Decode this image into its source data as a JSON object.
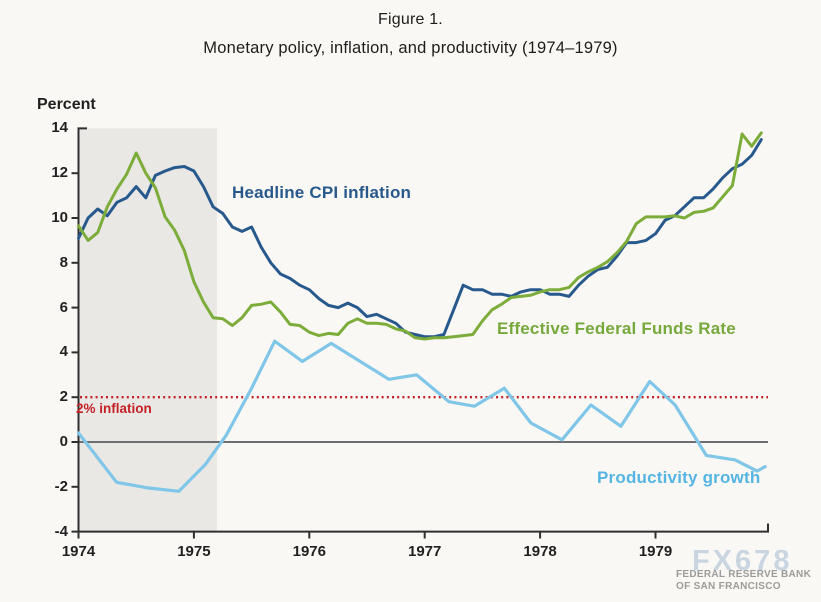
{
  "figure": {
    "label": "Figure 1.",
    "title": "Monetary policy, inflation, and productivity (1974–1979)"
  },
  "axis": {
    "unit_label": "Percent",
    "y_ticks": [
      14,
      12,
      10,
      8,
      6,
      4,
      2,
      0,
      -2,
      -4
    ],
    "x_ticks": [
      1974,
      1975,
      1976,
      1977,
      1978,
      1979
    ]
  },
  "annotations": {
    "cpi_label": "Headline CPI inflation",
    "ffr_label": "Effective Federal Funds Rate",
    "productivity_label": "Productivity growth",
    "target_label": "2% inflation"
  },
  "watermark": {
    "brand": "FX678",
    "org_line1": "FEDERAL RESERVE BANK",
    "org_line2": "OF SAN FRANCISCO"
  },
  "colors": {
    "background": "#faf8f4",
    "band": "#e9e8e5",
    "axis": "#2f2f2f",
    "zero_line": "#6d6e71",
    "target_line": "#c42127",
    "cpi": "#27598d",
    "ffr": "#7cad3a",
    "productivity": "#7fc6e8",
    "cpi_label": "#27598d",
    "ffr_label": "#76a93c",
    "productivity_label": "#54b5e3",
    "watermark_brand": "#becddd",
    "watermark_org": "#9b9b99"
  },
  "chart_data": {
    "type": "line",
    "title": "Monetary policy, inflation, and productivity (1974–1979)",
    "xlabel": "",
    "ylabel": "Percent",
    "ylim": [
      -4,
      14
    ],
    "xlim": [
      1974,
      1979.97
    ],
    "grid": false,
    "legend_position": "inline-annotations",
    "shaded_region": {
      "x_start": 1974.0,
      "x_end": 1975.2
    },
    "reference_lines": [
      {
        "value": 2,
        "label": "2% inflation",
        "style": "dotted",
        "color": "#c42127"
      },
      {
        "value": 0,
        "label": "",
        "style": "solid",
        "color": "#6d6e71"
      }
    ],
    "series": [
      {
        "name": "Headline CPI inflation",
        "color": "#27598d",
        "x_start": 1974.0,
        "x_step_months": 1,
        "values": [
          9.1,
          10.0,
          10.4,
          10.1,
          10.7,
          10.9,
          11.4,
          10.9,
          11.9,
          12.1,
          12.25,
          12.3,
          12.1,
          11.4,
          10.5,
          10.2,
          9.6,
          9.4,
          9.6,
          8.7,
          8.0,
          7.5,
          7.3,
          7.0,
          6.8,
          6.4,
          6.1,
          6.0,
          6.2,
          6.0,
          5.6,
          5.7,
          5.5,
          5.3,
          4.9,
          4.8,
          4.7,
          4.7,
          4.8,
          5.9,
          7.0,
          6.8,
          6.8,
          6.6,
          6.6,
          6.5,
          6.7,
          6.8,
          6.8,
          6.6,
          6.6,
          6.5,
          7.0,
          7.4,
          7.7,
          7.8,
          8.3,
          8.9,
          8.9,
          9.0,
          9.3,
          9.9,
          10.1,
          10.5,
          10.9,
          10.9,
          11.3,
          11.8,
          12.2,
          12.4,
          12.8,
          13.5
        ]
      },
      {
        "name": "Effective Federal Funds Rate",
        "color": "#7cad3a",
        "x_start": 1974.0,
        "x_step_months": 1,
        "values": [
          9.65,
          9.0,
          9.35,
          10.5,
          11.3,
          11.95,
          12.9,
          12.0,
          11.35,
          10.05,
          9.45,
          8.55,
          7.15,
          6.25,
          5.55,
          5.5,
          5.2,
          5.55,
          6.1,
          6.15,
          6.25,
          5.8,
          5.25,
          5.2,
          4.9,
          4.75,
          4.85,
          4.8,
          5.3,
          5.5,
          5.3,
          5.3,
          5.25,
          5.05,
          4.95,
          4.65,
          4.6,
          4.65,
          4.65,
          4.7,
          4.75,
          4.8,
          5.4,
          5.9,
          6.15,
          6.45,
          6.5,
          6.55,
          6.7,
          6.8,
          6.8,
          6.9,
          7.35,
          7.6,
          7.8,
          8.05,
          8.45,
          8.95,
          9.75,
          10.05,
          10.05,
          10.05,
          10.1,
          10.0,
          10.25,
          10.3,
          10.45,
          10.95,
          11.45,
          13.75,
          13.2,
          13.8
        ]
      },
      {
        "name": "Productivity growth",
        "color": "#7fc6e8",
        "x": [
          1974.0,
          1974.33,
          1974.6,
          1974.87,
          1975.1,
          1975.28,
          1975.5,
          1975.7,
          1975.94,
          1976.19,
          1976.44,
          1976.69,
          1976.93,
          1977.21,
          1977.43,
          1977.69,
          1977.92,
          1978.19,
          1978.44,
          1978.7,
          1978.95,
          1979.17,
          1979.44,
          1979.69,
          1979.88,
          1979.95
        ],
        "values": [
          0.4,
          -1.8,
          -2.05,
          -2.2,
          -1.0,
          0.3,
          2.4,
          4.5,
          3.6,
          4.4,
          3.6,
          2.8,
          3.0,
          1.8,
          1.6,
          2.4,
          0.85,
          0.1,
          1.65,
          0.7,
          2.7,
          1.65,
          -0.6,
          -0.8,
          -1.3,
          -1.1
        ]
      }
    ]
  }
}
